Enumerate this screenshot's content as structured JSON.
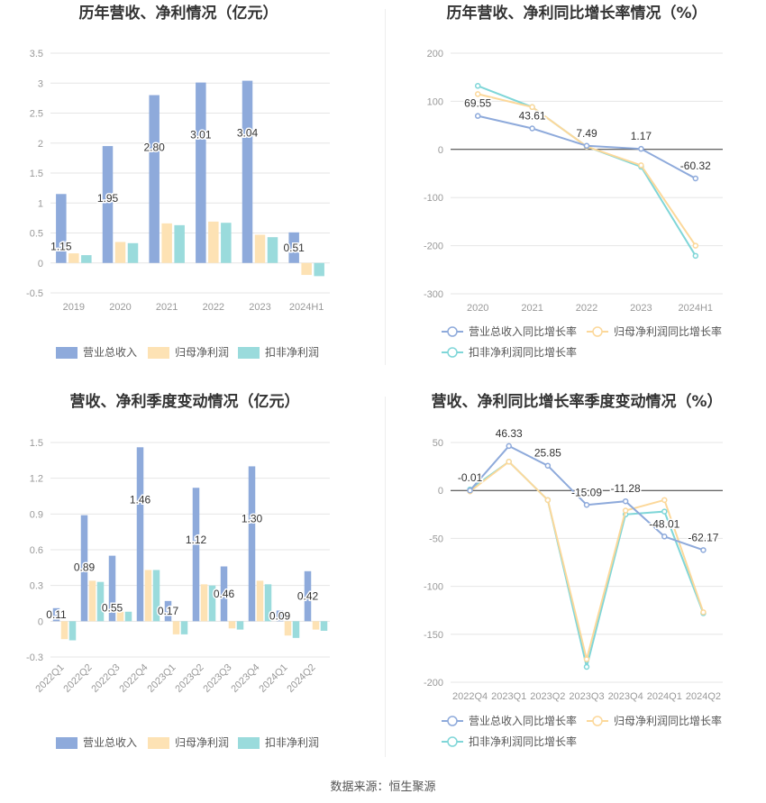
{
  "colors": {
    "revenue": "#8eaadb",
    "parent_profit": "#fde2b4",
    "deducted_profit": "#9adbdc",
    "grid": "#e6e6e6",
    "axis_text": "#999999",
    "title_text": "#333333"
  },
  "source": "数据来源：恒生聚源",
  "chart_data": [
    {
      "type": "bar",
      "title": "历年营收、净利情况（亿元）",
      "categories": [
        "2019",
        "2020",
        "2021",
        "2022",
        "2023",
        "2024H1"
      ],
      "series": [
        {
          "name": "营业总收入",
          "values": [
            1.15,
            1.95,
            2.8,
            3.01,
            3.04,
            0.51
          ]
        },
        {
          "name": "归母净利润",
          "values": [
            0.16,
            0.35,
            0.66,
            0.69,
            0.47,
            -0.2
          ]
        },
        {
          "name": "扣非净利润",
          "values": [
            0.13,
            0.33,
            0.63,
            0.67,
            0.43,
            -0.22
          ]
        }
      ],
      "data_labels": [
        "1.15",
        "1.95",
        "2.80",
        "3.01",
        "3.04",
        "0.51"
      ],
      "yticks": [
        "3.5",
        "3",
        "2.5",
        "2",
        "1.5",
        "1",
        "0.5",
        "0",
        "-0.5"
      ],
      "ylim": [
        -0.5,
        3.5
      ],
      "legend_position": "bottom",
      "grid": true
    },
    {
      "type": "line",
      "title": "历年营收、净利同比增长率情况（%）",
      "categories": [
        "2020",
        "2021",
        "2022",
        "2023",
        "2024H1"
      ],
      "series": [
        {
          "name": "营业总收入同比增长率",
          "values": [
            69.55,
            43.61,
            7.49,
            1.17,
            -60.32
          ]
        },
        {
          "name": "归母净利润同比增长率",
          "values": [
            115,
            88,
            6,
            -33,
            -200
          ]
        },
        {
          "name": "扣非净利润同比增长率",
          "values": [
            132,
            88,
            6,
            -36,
            -221
          ]
        }
      ],
      "data_labels": [
        "69.55",
        "43.61",
        "7.49",
        "1.17",
        "-60.32"
      ],
      "yticks": [
        "200",
        "100",
        "0",
        "-100",
        "-200",
        "-300"
      ],
      "ylim": [
        -300,
        200
      ],
      "legend_position": "bottom",
      "grid": true
    },
    {
      "type": "bar",
      "title": "营收、净利季度变动情况（亿元）",
      "categories": [
        "2022Q1",
        "2022Q2",
        "2022Q3",
        "2022Q4",
        "2023Q1",
        "2023Q2",
        "2023Q3",
        "2023Q4",
        "2024Q1",
        "2024Q2"
      ],
      "series": [
        {
          "name": "营业总收入",
          "values": [
            0.11,
            0.89,
            0.55,
            1.46,
            0.17,
            1.12,
            0.46,
            1.3,
            0.09,
            0.42
          ]
        },
        {
          "name": "归母净利润",
          "values": [
            -0.15,
            0.34,
            0.08,
            0.43,
            -0.11,
            0.31,
            -0.06,
            0.34,
            -0.12,
            -0.07
          ]
        },
        {
          "name": "扣非净利润",
          "values": [
            -0.16,
            0.33,
            0.08,
            0.43,
            -0.11,
            0.3,
            -0.07,
            0.31,
            -0.14,
            -0.08
          ]
        }
      ],
      "data_labels": [
        "0.11",
        "0.89",
        "0.55",
        "1.46",
        "0.17",
        "1.12",
        "0.46",
        "1.30",
        "0.09",
        "0.42"
      ],
      "yticks": [
        "1.5",
        "1.2",
        "0.9",
        "0.6",
        "0.3",
        "0",
        "-0.3"
      ],
      "ylim": [
        -0.3,
        1.5
      ],
      "legend_position": "bottom",
      "grid": true
    },
    {
      "type": "line",
      "title": "营收、净利同比增长率季度变动情况（%）",
      "categories": [
        "2022Q4",
        "2023Q1",
        "2023Q2",
        "2023Q3",
        "2023Q4",
        "2024Q1",
        "2024Q2"
      ],
      "series": [
        {
          "name": "营业总收入同比增长率",
          "values": [
            -0.01,
            46.33,
            25.85,
            -15.09,
            -11.28,
            -48.01,
            -62.17
          ]
        },
        {
          "name": "归母净利润同比增长率",
          "values": [
            -1,
            30,
            -10,
            -176,
            -21,
            -10,
            -127
          ]
        },
        {
          "name": "扣非净利润同比增长率",
          "values": [
            1,
            30,
            -10,
            -184,
            -25,
            -22,
            -128
          ]
        }
      ],
      "data_labels": [
        "-0.01",
        "46.33",
        "25.85",
        "-15.09",
        "-11.28",
        "-48.01",
        "-62.17"
      ],
      "yticks": [
        "50",
        "0",
        "-50",
        "-100",
        "-150",
        "-200"
      ],
      "ylim": [
        -200,
        50
      ],
      "legend_position": "bottom",
      "grid": true
    }
  ]
}
